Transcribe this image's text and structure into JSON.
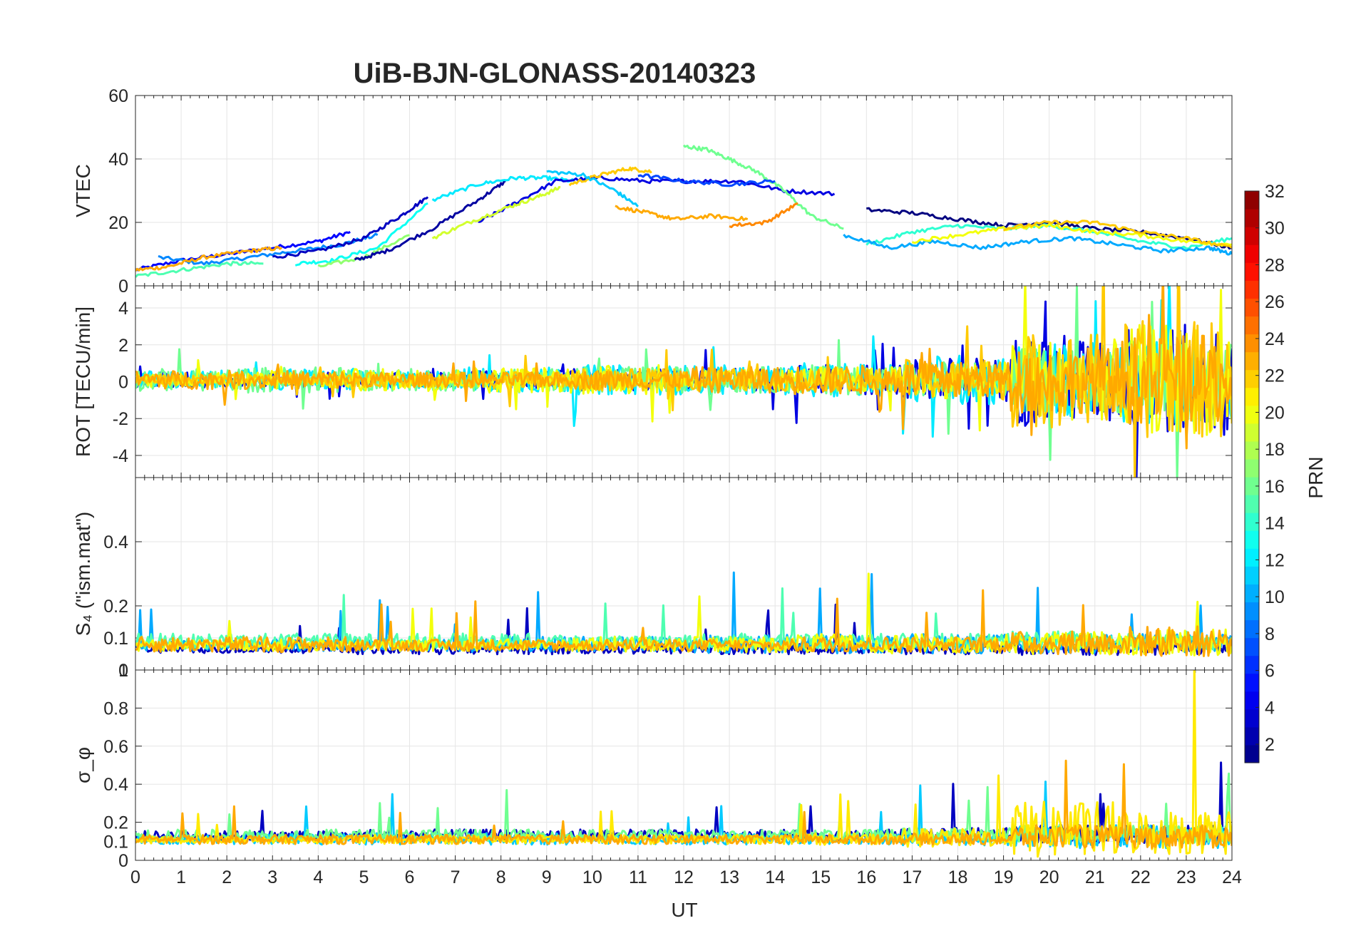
{
  "chart_data": {
    "type": "line",
    "title": "UiB-BJN-GLONASS-20140323",
    "xlabel": "UT",
    "xlim": [
      0,
      24
    ],
    "x_ticks": [
      "0",
      "1",
      "2",
      "3",
      "4",
      "5",
      "6",
      "7",
      "8",
      "9",
      "10",
      "11",
      "12",
      "13",
      "14",
      "15",
      "16",
      "17",
      "18",
      "19",
      "20",
      "21",
      "22",
      "23",
      "24"
    ],
    "colorbar": {
      "label": "PRN",
      "range": [
        1,
        32
      ],
      "ticks": [
        "2",
        "4",
        "6",
        "8",
        "10",
        "12",
        "14",
        "16",
        "18",
        "20",
        "22",
        "24",
        "26",
        "28",
        "30",
        "32"
      ]
    },
    "panels": [
      {
        "ylabel": "VTEC",
        "ylim": [
          0,
          60
        ],
        "y_ticks": [
          "0",
          "20",
          "40",
          "60"
        ],
        "series": [
          {
            "prn": 5,
            "x": [
              0.0,
              1.0,
              2.0,
              3.0,
              4.0,
              4.7
            ],
            "y": [
              5,
              8,
              10,
              12,
              14,
              17
            ]
          },
          {
            "prn": 9,
            "x": [
              0.5,
              1.5,
              2.5,
              3.5,
              4.5,
              5.3
            ],
            "y": [
              9,
              7,
              9,
              11,
              13,
              16
            ]
          },
          {
            "prn": 23,
            "x": [
              0.0,
              0.7,
              1.5,
              2.5,
              3.2
            ],
            "y": [
              5,
              6,
              9,
              11,
              12
            ]
          },
          {
            "prn": 15,
            "x": [
              0.0,
              1.0,
              2.0,
              2.8
            ],
            "y": [
              3,
              5,
              7,
              7
            ]
          },
          {
            "prn": 3,
            "x": [
              3.0,
              4.0,
              5.0,
              5.8,
              6.4
            ],
            "y": [
              9,
              11,
              15,
              22,
              28
            ]
          },
          {
            "prn": 13,
            "x": [
              3.5,
              4.3,
              5.3,
              6.4
            ],
            "y": [
              7,
              8,
              12,
              26
            ]
          },
          {
            "prn": 17,
            "x": [
              4.0,
              5.0,
              6.0
            ],
            "y": [
              6,
              9,
              16
            ]
          },
          {
            "prn": 2,
            "x": [
              4.8,
              5.5,
              6.5,
              7.5,
              8.1
            ],
            "y": [
              8,
              11,
              18,
              27,
              33
            ]
          },
          {
            "prn": 12,
            "x": [
              6.5,
              7.5,
              8.3,
              9.0,
              9.6
            ],
            "y": [
              27,
              32,
              34,
              34,
              33
            ]
          },
          {
            "prn": 4,
            "x": [
              7.5,
              8.3,
              9.2,
              10.2,
              11.2,
              12.2,
              13.2,
              14.2,
              15.3
            ],
            "y": [
              20,
              26,
              33,
              34,
              33,
              33,
              33,
              30,
              29
            ]
          },
          {
            "prn": 19,
            "x": [
              6.5,
              7.3,
              8.2,
              8.8,
              9.3
            ],
            "y": [
              15,
              20,
              25,
              28,
              31
            ]
          },
          {
            "prn": 22,
            "x": [
              9.5,
              10.2,
              10.8,
              11.3
            ],
            "y": [
              32,
              35,
              37,
              36
            ]
          },
          {
            "prn": 23,
            "x": [
              10.5,
              11.2,
              11.8,
              12.6,
              13.4
            ],
            "y": [
              25,
              23,
              21,
              22,
              21
            ]
          },
          {
            "prn": 11,
            "x": [
              9.0,
              9.8,
              10.5,
              11.0
            ],
            "y": [
              36,
              35,
              30,
              25
            ]
          },
          {
            "prn": 16,
            "x": [
              12.0,
              12.5,
              13.0,
              13.6,
              14.2,
              14.8,
              15.5
            ],
            "y": [
              44,
              43,
              40,
              36,
              30,
              22,
              18
            ]
          },
          {
            "prn": 7,
            "x": [
              11.0,
              12.0,
              13.0,
              14.0
            ],
            "y": [
              35,
              33,
              32,
              33
            ]
          },
          {
            "prn": 24,
            "x": [
              13.0,
              13.8,
              14.5
            ],
            "y": [
              19,
              20,
              26
            ]
          },
          {
            "prn": 1,
            "x": [
              16.0,
              17.0,
              18.0,
              19.0,
              20.0,
              21.0,
              22.0,
              23.0,
              24.0
            ],
            "y": [
              24,
              23,
              21,
              19,
              20,
              18,
              17,
              15,
              12
            ]
          },
          {
            "prn": 14,
            "x": [
              16.0,
              17.0,
              18.0,
              19.0,
              20.0,
              21.0,
              22.0,
              23.0,
              24.0
            ],
            "y": [
              13,
              17,
              19,
              18,
              19,
              17,
              14,
              12,
              15
            ]
          },
          {
            "prn": 10,
            "x": [
              15.5,
              16.5,
              17.5,
              18.5,
              19.5,
              20.5,
              21.5,
              22.5,
              23.5,
              24.0
            ],
            "y": [
              16,
              12,
              14,
              12,
              14,
              15,
              13,
              11,
              12,
              10
            ]
          },
          {
            "prn": 20,
            "x": [
              17.0,
              18.0,
              19.0,
              20.0,
              21.0,
              22.0,
              23.0,
              24.0
            ],
            "y": [
              14,
              16,
              18,
              19,
              17,
              16,
              14,
              13
            ]
          },
          {
            "prn": 22,
            "x": [
              19.0,
              20.0,
              21.0,
              22.0,
              23.0,
              24.0
            ],
            "y": [
              18,
              20,
              20,
              17,
              15,
              12
            ]
          }
        ]
      },
      {
        "ylabel": "ROT [TECU/min]",
        "ylim": [
          -5.2,
          5.2
        ],
        "y_ticks": [
          "-4",
          "-2",
          "0",
          "2",
          "4"
        ],
        "series": [
          {
            "prn": 4,
            "kind": "noise",
            "x0": 0.0,
            "x1": 24.0,
            "amp": [
              0.4,
              0.4,
              0.4,
              0.5,
              0.6,
              0.6,
              0.8,
              1.2,
              2.5,
              3.0
            ]
          },
          {
            "prn": 12,
            "kind": "noise",
            "x0": 0.0,
            "x1": 24.0,
            "amp": [
              0.5,
              0.6,
              0.5,
              0.7,
              0.8,
              0.8,
              0.9,
              1.4,
              2.0,
              2.5
            ]
          },
          {
            "prn": 16,
            "kind": "noise",
            "x0": 0.0,
            "x1": 24.0,
            "amp": [
              0.6,
              0.7,
              0.6,
              0.6,
              0.7,
              0.7,
              0.8,
              1.0,
              1.8,
              2.2
            ]
          },
          {
            "prn": 20,
            "kind": "noise",
            "x0": 0.0,
            "x1": 24.0,
            "amp": [
              0.4,
              0.5,
              0.6,
              0.7,
              0.8,
              0.6,
              0.7,
              1.0,
              2.2,
              3.0
            ]
          },
          {
            "prn": 22,
            "kind": "noise",
            "x0": 0.0,
            "x1": 24.0,
            "amp": [
              0.3,
              0.3,
              0.4,
              0.5,
              0.6,
              0.6,
              0.6,
              1.1,
              2.6,
              3.2
            ]
          },
          {
            "prn": 23,
            "kind": "noise",
            "x0": 0.0,
            "x1": 24.0,
            "amp": [
              0.5,
              0.5,
              0.4,
              0.4,
              0.5,
              0.7,
              0.8,
              1.0,
              1.8,
              2.4
            ]
          }
        ]
      },
      {
        "ylabel": "S₄ (\"ism.mat\")",
        "ylim": [
          0,
          0.6
        ],
        "y_ticks": [
          "0",
          "0.1",
          "0.2",
          "0.4"
        ],
        "series": [
          {
            "prn": 3,
            "kind": "noise",
            "x0": 0.0,
            "x1": 24.0,
            "base": 0.06,
            "amp": [
              0.02,
              0.02,
              0.03,
              0.03,
              0.03,
              0.03,
              0.03,
              0.03,
              0.04,
              0.04
            ]
          },
          {
            "prn": 10,
            "kind": "noise",
            "x0": 0.0,
            "x1": 24.0,
            "base": 0.07,
            "amp": [
              0.03,
              0.03,
              0.03,
              0.04,
              0.04,
              0.05,
              0.05,
              0.05,
              0.05,
              0.05
            ]
          },
          {
            "prn": 15,
            "kind": "noise",
            "x0": 0.0,
            "x1": 24.0,
            "base": 0.08,
            "amp": [
              0.04,
              0.04,
              0.04,
              0.04,
              0.03,
              0.04,
              0.04,
              0.04,
              0.05,
              0.05
            ]
          },
          {
            "prn": 20,
            "kind": "noise",
            "x0": 0.0,
            "x1": 24.0,
            "base": 0.07,
            "amp": [
              0.03,
              0.03,
              0.03,
              0.03,
              0.04,
              0.04,
              0.05,
              0.05,
              0.06,
              0.07
            ]
          },
          {
            "prn": 23,
            "kind": "noise",
            "x0": 0.0,
            "x1": 24.0,
            "base": 0.07,
            "amp": [
              0.04,
              0.04,
              0.03,
              0.03,
              0.03,
              0.03,
              0.04,
              0.04,
              0.06,
              0.08
            ]
          }
        ]
      },
      {
        "ylabel": "σ_φ",
        "ylim": [
          0,
          1.0
        ],
        "y_ticks": [
          "0",
          "0.1",
          "0.2",
          "0.4",
          "0.6",
          "0.8",
          "1"
        ],
        "series": [
          {
            "prn": 3,
            "kind": "noise",
            "x0": 0.0,
            "x1": 24.0,
            "base": 0.12,
            "amp": [
              0.04,
              0.04,
              0.05,
              0.05,
              0.05,
              0.05,
              0.05,
              0.06,
              0.08,
              0.08
            ]
          },
          {
            "prn": 11,
            "kind": "noise",
            "x0": 0.0,
            "x1": 24.0,
            "base": 0.1,
            "amp": [
              0.04,
              0.05,
              0.05,
              0.05,
              0.04,
              0.05,
              0.05,
              0.06,
              0.1,
              0.1
            ]
          },
          {
            "prn": 16,
            "kind": "noise",
            "x0": 0.0,
            "x1": 24.0,
            "base": 0.12,
            "amp": [
              0.05,
              0.05,
              0.05,
              0.05,
              0.05,
              0.05,
              0.05,
              0.06,
              0.08,
              0.08
            ]
          },
          {
            "prn": 21,
            "kind": "noise",
            "x0": 0.0,
            "x1": 24.0,
            "base": 0.1,
            "amp": [
              0.03,
              0.03,
              0.04,
              0.04,
              0.04,
              0.04,
              0.05,
              0.08,
              0.25,
              0.2
            ]
          },
          {
            "prn": 23,
            "kind": "noise",
            "x0": 0.0,
            "x1": 24.0,
            "base": 0.1,
            "amp": [
              0.04,
              0.04,
              0.04,
              0.04,
              0.04,
              0.04,
              0.04,
              0.05,
              0.1,
              0.1
            ]
          }
        ]
      }
    ]
  }
}
